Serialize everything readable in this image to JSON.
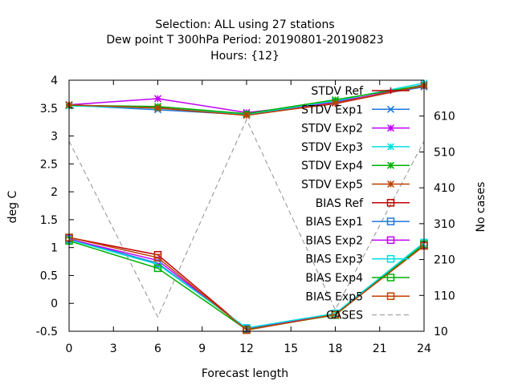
{
  "chart_data": {
    "type": "line",
    "title_lines": [
      "Selection: ALL using    27 stations",
      "Dew point T 300hPa   Period: 20190801-20190823",
      "Hours: {12}"
    ],
    "xlabel": "Forecast length",
    "ylabel": "deg C",
    "y2label": "No cases",
    "x": [
      0,
      6,
      12,
      18,
      24
    ],
    "xticks": [
      0,
      3,
      6,
      9,
      12,
      15,
      18,
      21,
      24
    ],
    "xlim": [
      0,
      24
    ],
    "ylim": [
      -0.5,
      4
    ],
    "yticks": [
      -0.5,
      0,
      0.5,
      1,
      1.5,
      2,
      2.5,
      3,
      3.5,
      4
    ],
    "y2lim": [
      10,
      710
    ],
    "y2ticks": [
      10,
      110,
      210,
      310,
      410,
      510,
      610
    ],
    "grid": false,
    "legend_position": "top-right",
    "series": [
      {
        "name": "STDV Ref",
        "color": "#c00000",
        "marker": "plus",
        "axis": "y1",
        "dash": "",
        "values": [
          3.55,
          3.51,
          3.38,
          3.58,
          3.9
        ]
      },
      {
        "name": "STDV Exp1",
        "color": "#1f77e0",
        "marker": "x",
        "axis": "y1",
        "dash": "",
        "values": [
          3.55,
          3.47,
          3.38,
          3.62,
          3.88
        ]
      },
      {
        "name": "STDV Exp2",
        "color": "#c000ff",
        "marker": "star",
        "axis": "y1",
        "dash": "",
        "values": [
          3.56,
          3.67,
          3.42,
          3.6,
          3.92
        ]
      },
      {
        "name": "STDV Exp3",
        "color": "#00e0e0",
        "marker": "star",
        "axis": "y1",
        "dash": "",
        "values": [
          3.54,
          3.5,
          3.39,
          3.63,
          3.95
        ]
      },
      {
        "name": "STDV Exp4",
        "color": "#00b000",
        "marker": "star",
        "axis": "y1",
        "dash": "",
        "values": [
          3.55,
          3.53,
          3.4,
          3.65,
          3.91
        ]
      },
      {
        "name": "STDV Exp5",
        "color": "#c04000",
        "marker": "star",
        "axis": "y1",
        "dash": "",
        "values": [
          3.56,
          3.5,
          3.37,
          3.59,
          3.9
        ]
      },
      {
        "name": "BIAS Ref",
        "color": "#c00000",
        "marker": "square",
        "axis": "y1",
        "dash": "",
        "values": [
          1.18,
          0.87,
          -0.47,
          -0.2,
          1.05
        ]
      },
      {
        "name": "BIAS Exp1",
        "color": "#1f77e0",
        "marker": "square",
        "axis": "y1",
        "dash": "",
        "values": [
          1.16,
          0.72,
          -0.45,
          -0.19,
          1.06
        ]
      },
      {
        "name": "BIAS Exp2",
        "color": "#c000ff",
        "marker": "square",
        "axis": "y1",
        "dash": "",
        "values": [
          1.15,
          0.77,
          -0.46,
          -0.2,
          1.04
        ]
      },
      {
        "name": "BIAS Exp3",
        "color": "#00e0e0",
        "marker": "square",
        "axis": "y1",
        "dash": "",
        "values": [
          1.14,
          0.7,
          -0.44,
          -0.18,
          1.09
        ]
      },
      {
        "name": "BIAS Exp4",
        "color": "#00b000",
        "marker": "square",
        "axis": "y1",
        "dash": "",
        "values": [
          1.12,
          0.63,
          -0.47,
          -0.21,
          1.06
        ]
      },
      {
        "name": "BIAS Exp5",
        "color": "#c04000",
        "marker": "square",
        "axis": "y1",
        "dash": "",
        "values": [
          1.18,
          0.82,
          -0.48,
          -0.2,
          1.03
        ]
      },
      {
        "name": "CASES",
        "color": "#909090",
        "marker": "none",
        "axis": "y2",
        "dash": "6,4",
        "values": [
          540,
          50,
          600,
          70,
          540
        ]
      }
    ]
  }
}
